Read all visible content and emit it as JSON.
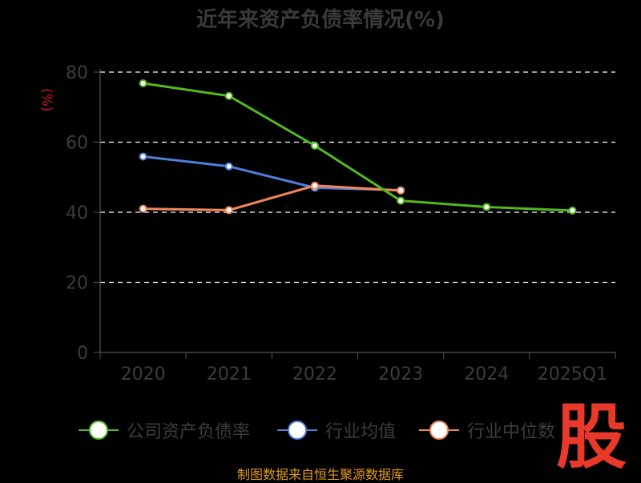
{
  "title": "近年来资产负债率情况(%)",
  "source": "制图数据来自恒生聚源数据库",
  "logo_text": "股",
  "colors": {
    "background": "#000000",
    "axis": "#555555",
    "grid": "#ffffff",
    "ylabel": "#d2151c",
    "source": "#e39a1d",
    "logo": "#e8392a"
  },
  "chart_data": {
    "type": "line",
    "title": "近年来资产负债率情况(%)",
    "ylabel": "(%)",
    "xlabel": "",
    "categories": [
      "2020",
      "2021",
      "2022",
      "2023",
      "2024",
      "2025Q1"
    ],
    "ylim": [
      0,
      80
    ],
    "yticks": [
      0,
      20,
      40,
      60,
      80
    ],
    "grid": true,
    "legend_position": "bottom",
    "series": [
      {
        "name": "公司资产负债率",
        "color": "#52b91e",
        "values": [
          76.8,
          73.2,
          59.0,
          43.3,
          41.5,
          40.5
        ]
      },
      {
        "name": "行业均值",
        "color": "#4f7fde",
        "values": [
          55.9,
          53.1,
          47.0,
          46.3,
          null,
          null
        ]
      },
      {
        "name": "行业中位数",
        "color": "#f3875c",
        "values": [
          41.0,
          40.6,
          47.6,
          46.2,
          null,
          null
        ]
      }
    ]
  }
}
